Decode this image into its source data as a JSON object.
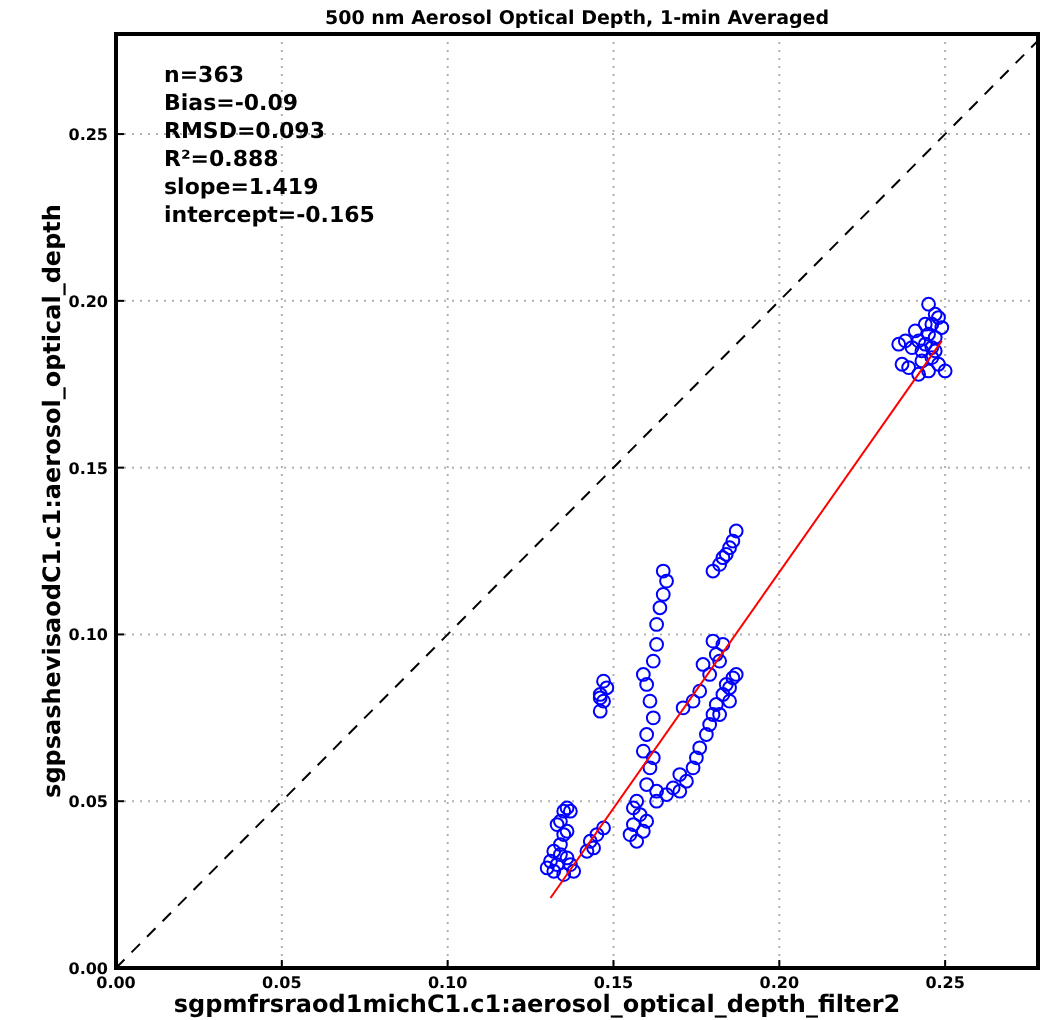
{
  "chart_data": {
    "type": "scatter",
    "title": "500 nm Aerosol Optical Depth, 1-min Averaged",
    "xlabel": "sgpmfrsraod1michC1.c1:aerosol_optical_depth_filter2",
    "ylabel": "sgpsashevisaodC1.c1:aerosol_optical_depth",
    "annotations": [
      "n=363",
      "Bias=-0.09",
      "RMSD=0.093",
      "R²=0.888",
      "slope=1.419",
      "intercept=-0.165"
    ],
    "xlim": [
      0,
      0.278
    ],
    "ylim": [
      0,
      0.28
    ],
    "xticks": [
      {
        "value": 0,
        "label": "0.00"
      },
      {
        "value": 0.05,
        "label": "0.05"
      },
      {
        "value": 0.1,
        "label": "0.10"
      },
      {
        "value": 0.15,
        "label": "0.15"
      },
      {
        "value": 0.2,
        "label": "0.20"
      },
      {
        "value": 0.25,
        "label": "0.25"
      }
    ],
    "yticks": [
      {
        "value": 0,
        "label": "0.00"
      },
      {
        "value": 0.05,
        "label": "0.05"
      },
      {
        "value": 0.1,
        "label": "0.10"
      },
      {
        "value": 0.15,
        "label": "0.15"
      },
      {
        "value": 0.2,
        "label": "0.20"
      },
      {
        "value": 0.25,
        "label": "0.25"
      }
    ],
    "grid": true,
    "marker": "circle",
    "series": [
      {
        "type": "line",
        "color": "#000000",
        "line_style": "dashed",
        "marker": "none",
        "x": [
          0,
          0.278
        ],
        "values": [
          0,
          0.278
        ]
      },
      {
        "color": "#0000ff",
        "x": [
          0.245,
          0.246,
          0.247,
          0.245,
          0.248,
          0.244,
          0.243,
          0.246,
          0.248,
          0.242,
          0.238,
          0.236,
          0.24,
          0.237,
          0.239,
          0.242,
          0.245,
          0.25,
          0.249,
          0.247,
          0.244,
          0.246,
          0.243,
          0.241,
          0.247,
          0.13,
          0.131,
          0.132,
          0.133,
          0.134,
          0.135,
          0.133,
          0.135,
          0.136,
          0.137,
          0.134,
          0.136,
          0.137,
          0.138,
          0.135,
          0.132,
          0.136,
          0.134,
          0.142,
          0.143,
          0.145,
          0.147,
          0.144,
          0.146,
          0.147,
          0.146,
          0.148,
          0.147,
          0.146,
          0.155,
          0.156,
          0.157,
          0.158,
          0.156,
          0.159,
          0.16,
          0.157,
          0.16,
          0.161,
          0.159,
          0.16,
          0.162,
          0.161,
          0.16,
          0.159,
          0.162,
          0.163,
          0.163,
          0.164,
          0.165,
          0.166,
          0.165,
          0.162,
          0.163,
          0.163,
          0.166,
          0.168,
          0.17,
          0.172,
          0.17,
          0.174,
          0.175,
          0.176,
          0.178,
          0.179,
          0.18,
          0.181,
          0.183,
          0.184,
          0.186,
          0.187,
          0.185,
          0.182,
          0.171,
          0.174,
          0.176,
          0.179,
          0.177,
          0.181,
          0.183,
          0.182,
          0.18,
          0.185,
          0.18,
          0.182,
          0.183,
          0.185,
          0.186,
          0.187,
          0.184
        ],
        "values": [
          0.19,
          0.193,
          0.196,
          0.199,
          0.195,
          0.187,
          0.185,
          0.183,
          0.181,
          0.188,
          0.188,
          0.187,
          0.186,
          0.181,
          0.18,
          0.178,
          0.179,
          0.179,
          0.192,
          0.189,
          0.193,
          0.186,
          0.182,
          0.191,
          0.185,
          0.03,
          0.032,
          0.035,
          0.031,
          0.037,
          0.04,
          0.043,
          0.047,
          0.048,
          0.047,
          0.034,
          0.033,
          0.031,
          0.029,
          0.028,
          0.029,
          0.041,
          0.044,
          0.035,
          0.038,
          0.04,
          0.042,
          0.036,
          0.077,
          0.08,
          0.082,
          0.084,
          0.086,
          0.081,
          0.04,
          0.043,
          0.038,
          0.046,
          0.048,
          0.041,
          0.044,
          0.05,
          0.055,
          0.06,
          0.065,
          0.07,
          0.075,
          0.08,
          0.085,
          0.088,
          0.092,
          0.097,
          0.103,
          0.108,
          0.112,
          0.116,
          0.119,
          0.063,
          0.053,
          0.05,
          0.052,
          0.054,
          0.053,
          0.056,
          0.058,
          0.06,
          0.063,
          0.066,
          0.07,
          0.073,
          0.076,
          0.079,
          0.082,
          0.085,
          0.087,
          0.088,
          0.08,
          0.076,
          0.078,
          0.08,
          0.083,
          0.088,
          0.091,
          0.094,
          0.097,
          0.092,
          0.098,
          0.084,
          0.119,
          0.121,
          0.123,
          0.126,
          0.128,
          0.131,
          0.124
        ]
      },
      {
        "type": "line",
        "color": "#ff0000",
        "line_style": "solid",
        "marker": "none",
        "x": [
          0.131,
          0.249
        ],
        "values": [
          0.021,
          0.188
        ]
      }
    ]
  }
}
